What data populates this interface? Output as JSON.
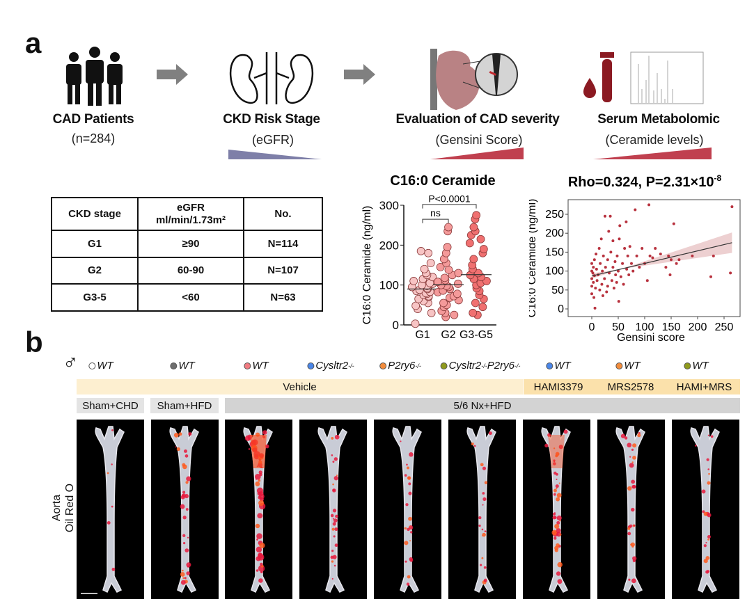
{
  "panel_a": {
    "letter": "a",
    "steps": [
      {
        "title": "CAD Patients",
        "subtitle": "(n=284)",
        "icon": "people-icon"
      },
      {
        "title": "CKD Risk Stage",
        "subtitle": "(eGFR)",
        "icon": "kidney-icon"
      },
      {
        "title": "Evaluation of CAD severity",
        "subtitle": "(Gensini Score)",
        "icon": "heart-icon"
      },
      {
        "title": "Serum Metabolomic",
        "subtitle": "(Ceramide levels)",
        "icon": "blood-tube-spectrum-icon"
      }
    ],
    "colors": {
      "decrease_wedge": "#7e7fa8",
      "increase_wedge": "#c0404f",
      "arrow": "#808080"
    },
    "table": {
      "headers": [
        "CKD stage",
        "eGFR",
        "ml/min/1.73m²",
        "No."
      ],
      "rows": [
        [
          "G1",
          "≥90",
          "N=114"
        ],
        [
          "G2",
          "60-90",
          "N=107"
        ],
        [
          "G3-5",
          "<60",
          "N=63"
        ]
      ]
    }
  },
  "chart_data": [
    {
      "type": "scatter",
      "title": "C16:0 Ceramide",
      "ylabel": "C16:0 Ceramide (ng/ml)",
      "categories": [
        "G1",
        "G2",
        "G3-G5"
      ],
      "ylim": [
        0,
        300
      ],
      "yticks": [
        "0",
        "100",
        "200",
        "300"
      ],
      "means": [
        90,
        101,
        126
      ],
      "group_colors": [
        "#f7c4c4",
        "#f49a9a",
        "#f07070"
      ],
      "values": [
        [
          3,
          30,
          40,
          48,
          55,
          60,
          65,
          70,
          72,
          75,
          78,
          80,
          83,
          85,
          88,
          90,
          92,
          95,
          98,
          100,
          103,
          105,
          110,
          115,
          120,
          125,
          130,
          140,
          155,
          180,
          185
        ],
        [
          20,
          25,
          30,
          35,
          45,
          50,
          55,
          62,
          68,
          72,
          78,
          82,
          86,
          90,
          95,
          98,
          100,
          103,
          108,
          112,
          118,
          125,
          130,
          138,
          145,
          155,
          165,
          180,
          195,
          235,
          245
        ],
        [
          25,
          30,
          45,
          55,
          65,
          75,
          85,
          92,
          100,
          105,
          110,
          115,
          120,
          125,
          130,
          140,
          150,
          165,
          180,
          190,
          205,
          215,
          225,
          235,
          245,
          265,
          275
        ]
      ],
      "annotations": [
        {
          "text": "ns",
          "between": [
            "G1",
            "G2"
          ]
        },
        {
          "text": "P<0.0001",
          "between": [
            "G1",
            "G3-G5"
          ]
        }
      ]
    },
    {
      "type": "scatter",
      "title": "Rho=0.324, P=2.31×10",
      "title_exponent": "-8",
      "xlabel": "Gensini score",
      "ylabel": "C16:0 Ceramide (ng/ml)",
      "xlim": [
        -15,
        270
      ],
      "ylim": [
        -15,
        280
      ],
      "xticks": [
        "0",
        "50",
        "100",
        "150",
        "200",
        "250"
      ],
      "yticks": [
        "0",
        "50",
        "100",
        "150",
        "200",
        "250"
      ],
      "point_color": "#b8323e",
      "band_color": "#e8c4c6",
      "fit": {
        "x": [
          0,
          265
        ],
        "y": [
          87,
          175
        ],
        "ci_upper_end": 202,
        "ci_lower_end": 148
      },
      "points": [
        [
          0,
          120
        ],
        [
          0,
          100
        ],
        [
          0,
          80
        ],
        [
          0,
          60
        ],
        [
          0,
          40
        ],
        [
          2,
          95
        ],
        [
          3,
          110
        ],
        [
          3,
          70
        ],
        [
          4,
          30
        ],
        [
          5,
          130
        ],
        [
          5,
          88
        ],
        [
          6,
          2
        ],
        [
          7,
          55
        ],
        [
          8,
          145
        ],
        [
          9,
          105
        ],
        [
          10,
          75
        ],
        [
          12,
          90
        ],
        [
          14,
          160
        ],
        [
          15,
          50
        ],
        [
          16,
          120
        ],
        [
          18,
          185
        ],
        [
          19,
          65
        ],
        [
          20,
          100
        ],
        [
          21,
          35
        ],
        [
          22,
          140
        ],
        [
          24,
          80
        ],
        [
          25,
          245
        ],
        [
          26,
          110
        ],
        [
          28,
          45
        ],
        [
          30,
          130
        ],
        [
          30,
          60
        ],
        [
          32,
          205
        ],
        [
          33,
          95
        ],
        [
          35,
          245
        ],
        [
          36,
          150
        ],
        [
          38,
          75
        ],
        [
          40,
          110
        ],
        [
          40,
          180
        ],
        [
          42,
          55
        ],
        [
          44,
          125
        ],
        [
          45,
          90
        ],
        [
          47,
          70
        ],
        [
          48,
          140
        ],
        [
          50,
          100
        ],
        [
          51,
          20
        ],
        [
          52,
          185
        ],
        [
          53,
          220
        ],
        [
          55,
          85
        ],
        [
          58,
          120
        ],
        [
          60,
          65
        ],
        [
          62,
          160
        ],
        [
          65,
          230
        ],
        [
          66,
          105
        ],
        [
          68,
          140
        ],
        [
          70,
          90
        ],
        [
          72,
          165
        ],
        [
          75,
          120
        ],
        [
          78,
          100
        ],
        [
          82,
          262
        ],
        [
          85,
          140
        ],
        [
          90,
          110
        ],
        [
          95,
          160
        ],
        [
          100,
          120
        ],
        [
          105,
          75
        ],
        [
          108,
          275
        ],
        [
          110,
          140
        ],
        [
          115,
          135
        ],
        [
          120,
          160
        ],
        [
          130,
          145
        ],
        [
          140,
          110
        ],
        [
          145,
          140
        ],
        [
          148,
          90
        ],
        [
          150,
          130
        ],
        [
          155,
          225
        ],
        [
          160,
          120
        ],
        [
          165,
          130
        ],
        [
          190,
          140
        ],
        [
          225,
          85
        ],
        [
          230,
          140
        ],
        [
          262,
          95
        ],
        [
          265,
          270
        ]
      ]
    }
  ],
  "panel_b": {
    "letter": "b",
    "sex_symbol": "♂",
    "genotypes": [
      {
        "label": "WT",
        "sup": "",
        "color": "#ffffff"
      },
      {
        "label": "WT",
        "sup": "",
        "color": "#6e6e6e"
      },
      {
        "label": "WT",
        "sup": "",
        "color": "#f07a80"
      },
      {
        "label": "Cysltr2",
        "sup": "-/-",
        "color": "#4a86e8"
      },
      {
        "label": "P2ry6",
        "sup": "-/-",
        "color": "#f28c3c"
      },
      {
        "label": "Cysltr2",
        "sup": "-/-",
        "label2": "P2ry6",
        "sup2": "-/-",
        "color": "#8f9a1c"
      },
      {
        "label": "WT",
        "sup": "",
        "color": "#4a86e8"
      },
      {
        "label": "WT",
        "sup": "",
        "color": "#f28c3c"
      },
      {
        "label": "WT",
        "sup": "",
        "color": "#8f9a1c"
      }
    ],
    "treatments": {
      "vehicle": "Vehicle",
      "drugs": [
        "HAMI3379",
        "MRS2578",
        "HAMI+MRS"
      ]
    },
    "surgeries": [
      "Sham+CHD",
      "Sham+HFD",
      "5/6 Nx+HFD"
    ],
    "row_label": [
      "Aorta",
      "Oil Red O"
    ],
    "colors": {
      "vehicle_band": "#fdefd0",
      "drug_band": "#fbe1ab",
      "sham_band": "#e4e4e4",
      "nx_band": "#d3d3d3"
    },
    "lesion_levels": [
      0.02,
      0.45,
      0.9,
      0.35,
      0.3,
      0.25,
      0.6,
      0.4,
      0.25
    ]
  }
}
